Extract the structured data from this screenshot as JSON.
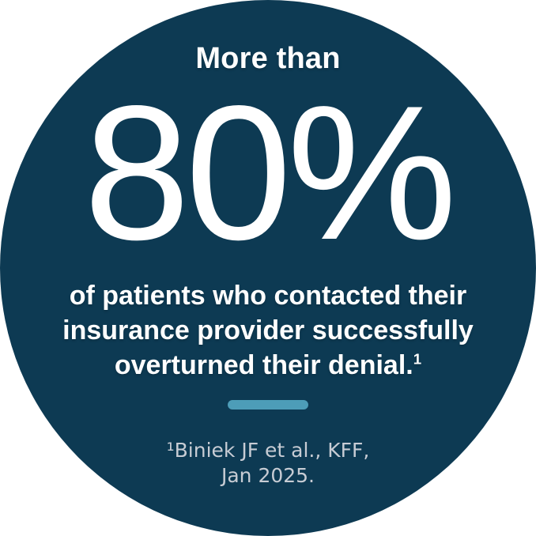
{
  "colors": {
    "page_bg": "#ffffff",
    "circle_bg": "#0d3a53",
    "text_primary": "#ffffff",
    "accent_bar": "#4d9db8",
    "footnote_text": "#c7ccd4"
  },
  "infographic": {
    "eyebrow": "More than",
    "stat_value": "80%",
    "statement_lines": [
      "of patients who contacted their",
      "insurance provider successfully",
      "overturned their denial."
    ],
    "statement_superscript": "1",
    "footnote_lines": [
      "¹Biniek JF et al., KFF,",
      "Jan 2025."
    ]
  },
  "chart_data": {
    "type": "stat",
    "qualifier": "More than",
    "value": 80,
    "unit": "%",
    "statement": "of patients who contacted their insurance provider successfully overturned their denial.",
    "source": "Biniek JF et al., KFF, Jan 2025."
  }
}
